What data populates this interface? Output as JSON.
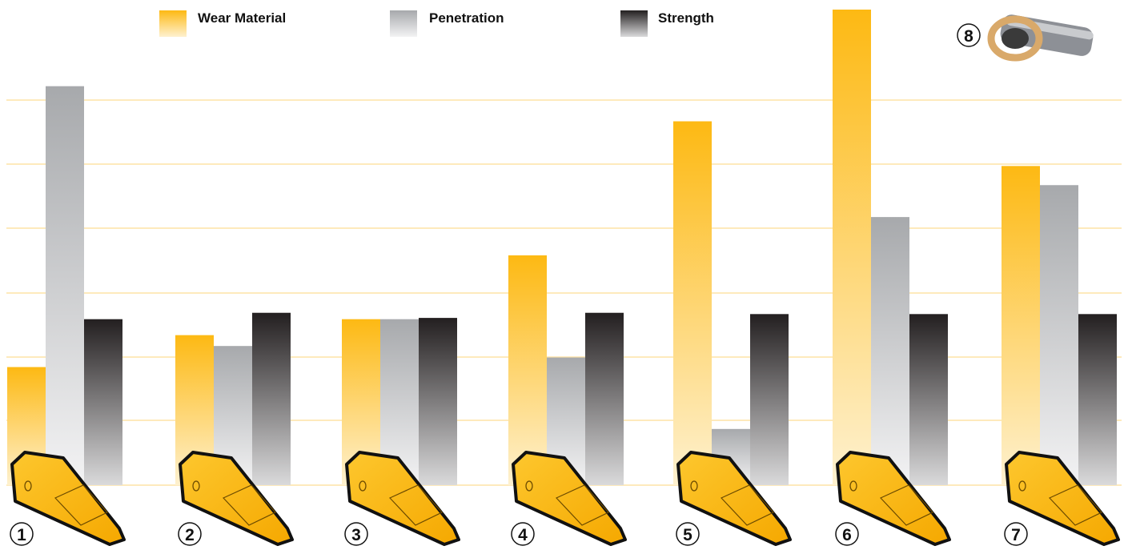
{
  "chart_data": {
    "type": "bar",
    "categories": [
      "1",
      "2",
      "3",
      "4",
      "5",
      "6",
      "7"
    ],
    "series": [
      {
        "name": "Wear Material",
        "color": "#FDB913",
        "values": [
          1.85,
          2.35,
          2.6,
          3.6,
          5.7,
          7.45,
          5.0
        ]
      },
      {
        "name": "Penetration",
        "color": "#A7A9AC",
        "values": [
          6.25,
          2.18,
          2.6,
          2.0,
          0.88,
          4.2,
          4.7
        ]
      },
      {
        "name": "Strength",
        "color": "#231F20",
        "values": [
          2.6,
          2.7,
          2.62,
          2.7,
          2.68,
          2.68,
          2.68
        ]
      }
    ],
    "ylim": [
      0,
      7.5
    ],
    "grid": true,
    "legend_position": "top",
    "inset_label": "8",
    "inset_icon": "pin-and-retainer-icon",
    "category_icon": "bucket-tooth-icon"
  }
}
